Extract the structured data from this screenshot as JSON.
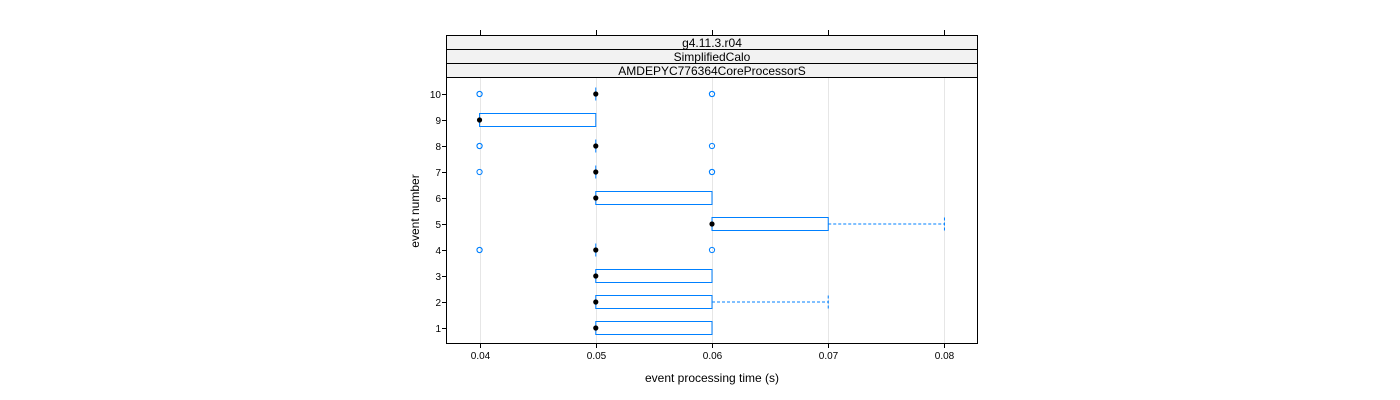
{
  "chart_data": {
    "type": "boxplot",
    "panel_strips": [
      "g4.11.3.r04",
      "SimplifiedCalo",
      "AMDEPYC776364CoreProcessorS"
    ],
    "xlabel": "event processing time (s)",
    "ylabel": "event number",
    "xlim": [
      0.0372,
      0.0828
    ],
    "x_ticks": [
      "0.04",
      "0.05",
      "0.06",
      "0.07",
      "0.08"
    ],
    "x_tick_values": [
      0.04,
      0.05,
      0.06,
      0.07,
      0.08
    ],
    "y_ticks": [
      "1",
      "2",
      "3",
      "4",
      "5",
      "6",
      "7",
      "8",
      "9",
      "10"
    ],
    "grid": "vertical",
    "colors": {
      "box": "#0080ff",
      "median": "#000000",
      "strip_bg": "#f2f2f2",
      "grid": "#e6e6e6"
    },
    "boxes": [
      {
        "event": 1,
        "whisker_low": 0.05,
        "q1": 0.05,
        "median": 0.05,
        "q3": 0.06,
        "whisker_high": 0.06,
        "outliers": []
      },
      {
        "event": 2,
        "whisker_low": 0.05,
        "q1": 0.05,
        "median": 0.05,
        "q3": 0.06,
        "whisker_high": 0.07,
        "outliers": []
      },
      {
        "event": 3,
        "whisker_low": 0.05,
        "q1": 0.05,
        "median": 0.05,
        "q3": 0.06,
        "whisker_high": 0.06,
        "outliers": []
      },
      {
        "event": 4,
        "whisker_low": 0.05,
        "q1": 0.05,
        "median": 0.05,
        "q3": 0.05,
        "whisker_high": 0.05,
        "outliers": [
          0.04,
          0.04,
          0.06
        ]
      },
      {
        "event": 5,
        "whisker_low": 0.06,
        "q1": 0.06,
        "median": 0.06,
        "q3": 0.07,
        "whisker_high": 0.08,
        "outliers": []
      },
      {
        "event": 6,
        "whisker_low": 0.05,
        "q1": 0.05,
        "median": 0.05,
        "q3": 0.06,
        "whisker_high": 0.06,
        "outliers": []
      },
      {
        "event": 7,
        "whisker_low": 0.05,
        "q1": 0.05,
        "median": 0.05,
        "q3": 0.05,
        "whisker_high": 0.05,
        "outliers": [
          0.04,
          0.06,
          0.06
        ]
      },
      {
        "event": 8,
        "whisker_low": 0.05,
        "q1": 0.05,
        "median": 0.05,
        "q3": 0.05,
        "whisker_high": 0.05,
        "outliers": [
          0.04,
          0.04,
          0.06
        ]
      },
      {
        "event": 9,
        "whisker_low": 0.04,
        "q1": 0.04,
        "median": 0.04,
        "q3": 0.05,
        "whisker_high": 0.05,
        "outliers": []
      },
      {
        "event": 10,
        "whisker_low": 0.05,
        "q1": 0.05,
        "median": 0.05,
        "q3": 0.05,
        "whisker_high": 0.05,
        "outliers": [
          0.04,
          0.04,
          0.06,
          0.06
        ]
      }
    ]
  }
}
